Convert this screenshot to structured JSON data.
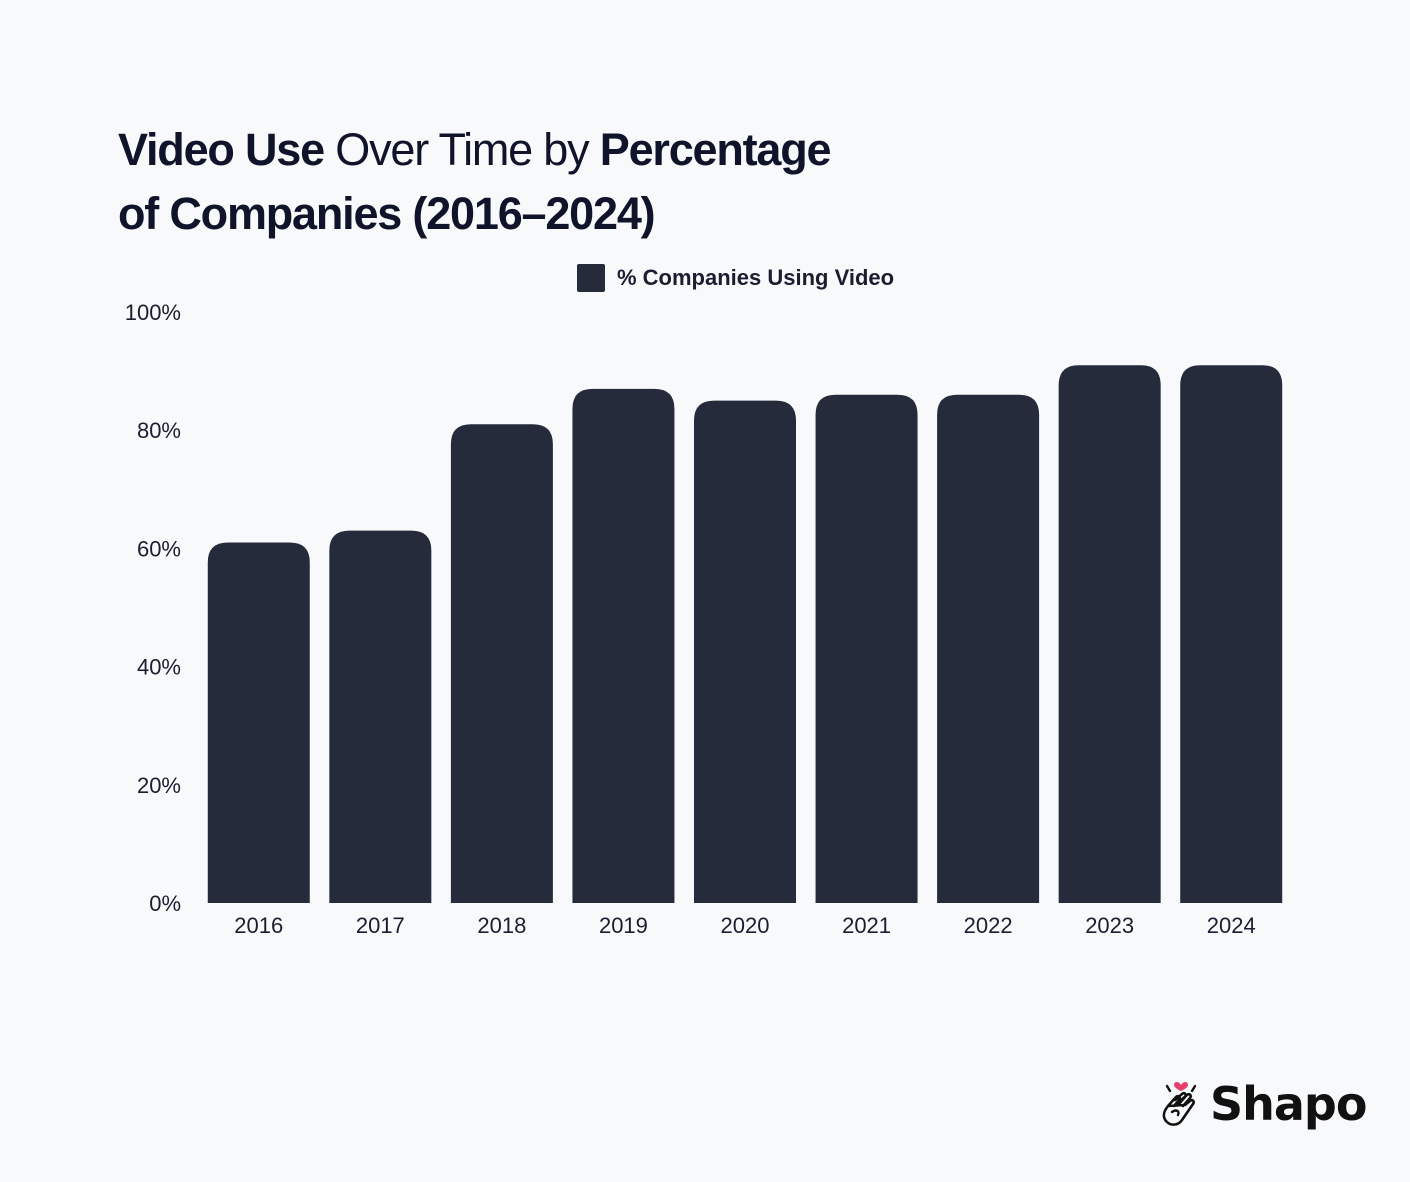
{
  "title": {
    "part1_bold": "Video Use",
    "part2_light": " Over Time by ",
    "part3_bold": "Percentage",
    "line2_bold": "of Companies (2016–2024)"
  },
  "colors": {
    "bar": "#262b3c",
    "background": "#f8f9fb",
    "text": "#10142a",
    "heart": "#e83e6b"
  },
  "brand": {
    "name": "Shapo",
    "icon": "clapping-hands-heart-icon"
  },
  "chart_data": {
    "type": "bar",
    "categories": [
      "2016",
      "2017",
      "2018",
      "2019",
      "2020",
      "2021",
      "2022",
      "2023",
      "2024"
    ],
    "series": [
      {
        "name": "% Companies Using Video",
        "values": [
          61,
          63,
          81,
          87,
          85,
          86,
          86,
          91,
          91
        ]
      }
    ],
    "ylim": [
      0,
      100
    ],
    "yticks": [
      "0%",
      "20%",
      "40%",
      "60%",
      "80%",
      "100%"
    ],
    "ytick_values": [
      0,
      20,
      40,
      60,
      80,
      100
    ],
    "legend": "top-center",
    "grid": false
  }
}
